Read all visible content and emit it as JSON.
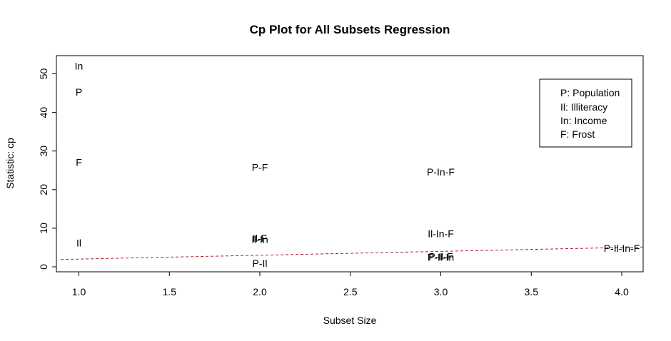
{
  "chart_data": {
    "type": "scatter",
    "title": "Cp Plot for All Subsets Regression",
    "xlabel": "Subset Size",
    "ylabel": "Statistic: cp",
    "xlim": [
      0.9,
      4.12
    ],
    "ylim": [
      -1,
      55
    ],
    "xticks": [
      "1.0",
      "1.5",
      "2.0",
      "2.5",
      "3.0",
      "3.5",
      "4.0"
    ],
    "yticks": [
      "0",
      "10",
      "20",
      "30",
      "40",
      "50"
    ],
    "points": [
      {
        "x": 1,
        "y": 52.0,
        "label": "In"
      },
      {
        "x": 1,
        "y": 45.3,
        "label": "P"
      },
      {
        "x": 1,
        "y": 27.1,
        "label": "F"
      },
      {
        "x": 1,
        "y": 6.2,
        "label": "Il"
      },
      {
        "x": 2,
        "y": 25.8,
        "label": "P-F"
      },
      {
        "x": 2,
        "y": 7.4,
        "label": "Il-F"
      },
      {
        "x": 2,
        "y": 7.1,
        "label": "Il-In"
      },
      {
        "x": 2,
        "y": 0.9,
        "label": "P-Il"
      },
      {
        "x": 3,
        "y": 24.6,
        "label": "P-In-F"
      },
      {
        "x": 3,
        "y": 8.6,
        "label": "Il-In-F"
      },
      {
        "x": 3,
        "y": 2.7,
        "label": "P-Il-F"
      },
      {
        "x": 3,
        "y": 2.5,
        "label": "P-Il-In"
      },
      {
        "x": 4,
        "y": 4.8,
        "label": "P-Il-In-F"
      }
    ],
    "reference_line": {
      "slope": 1,
      "intercept": 1,
      "style": "dashed",
      "color": "#b2182b"
    },
    "legend": {
      "position": "top-right",
      "entries": [
        "P: Population",
        "Il: Illiteracy",
        "In: Income",
        "F: Frost"
      ]
    },
    "grid": false
  }
}
